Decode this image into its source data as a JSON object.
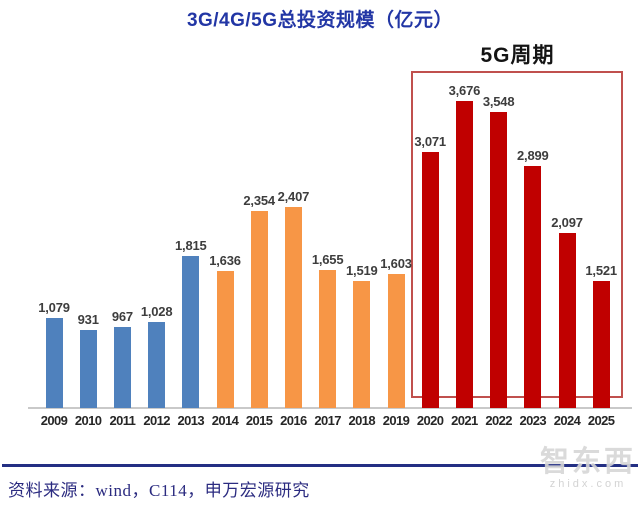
{
  "chart_data": {
    "type": "bar",
    "title": "3G/4G/5G总投资规模（亿元）",
    "unit": "亿元",
    "categories": [
      "2009",
      "2010",
      "2011",
      "2012",
      "2013",
      "2014",
      "2015",
      "2016",
      "2017",
      "2018",
      "2019",
      "2020",
      "2021",
      "2022",
      "2023",
      "2024",
      "2025"
    ],
    "values": [
      1079,
      931,
      967,
      1028,
      1815,
      1636,
      2354,
      2407,
      1655,
      1519,
      1603,
      3071,
      3676,
      3548,
      2899,
      2097,
      1521
    ],
    "bar_colors": [
      "#4F81BD",
      "#4F81BD",
      "#4F81BD",
      "#4F81BD",
      "#4F81BD",
      "#F79646",
      "#F79646",
      "#F79646",
      "#F79646",
      "#F79646",
      "#F79646",
      "#C00000",
      "#C00000",
      "#C00000",
      "#C00000",
      "#C00000",
      "#C00000"
    ],
    "series": [
      {
        "name": "3G",
        "years": "2009-2013",
        "color": "#4F81BD"
      },
      {
        "name": "4G",
        "years": "2014-2019",
        "color": "#F79646"
      },
      {
        "name": "5G",
        "years": "2020-2025",
        "color": "#C00000"
      }
    ],
    "ylim": [
      0,
      3700
    ],
    "grid": false,
    "legend": "none",
    "data_labels": true,
    "annotation": {
      "text": "5G周期",
      "covers_years": [
        "2020",
        "2025"
      ],
      "box_border_color": "#C0504D"
    }
  },
  "source": "资料来源：wind，C114，申万宏源研究",
  "watermark": {
    "name": "智东西",
    "url": "zhidx.com"
  },
  "colors": {
    "title_text": "#2236A5",
    "axis_line": "#C9C9C9",
    "footer_line": "#232F83",
    "source_text": "#2B2B80",
    "value_label_text": "#3D3D3D"
  }
}
